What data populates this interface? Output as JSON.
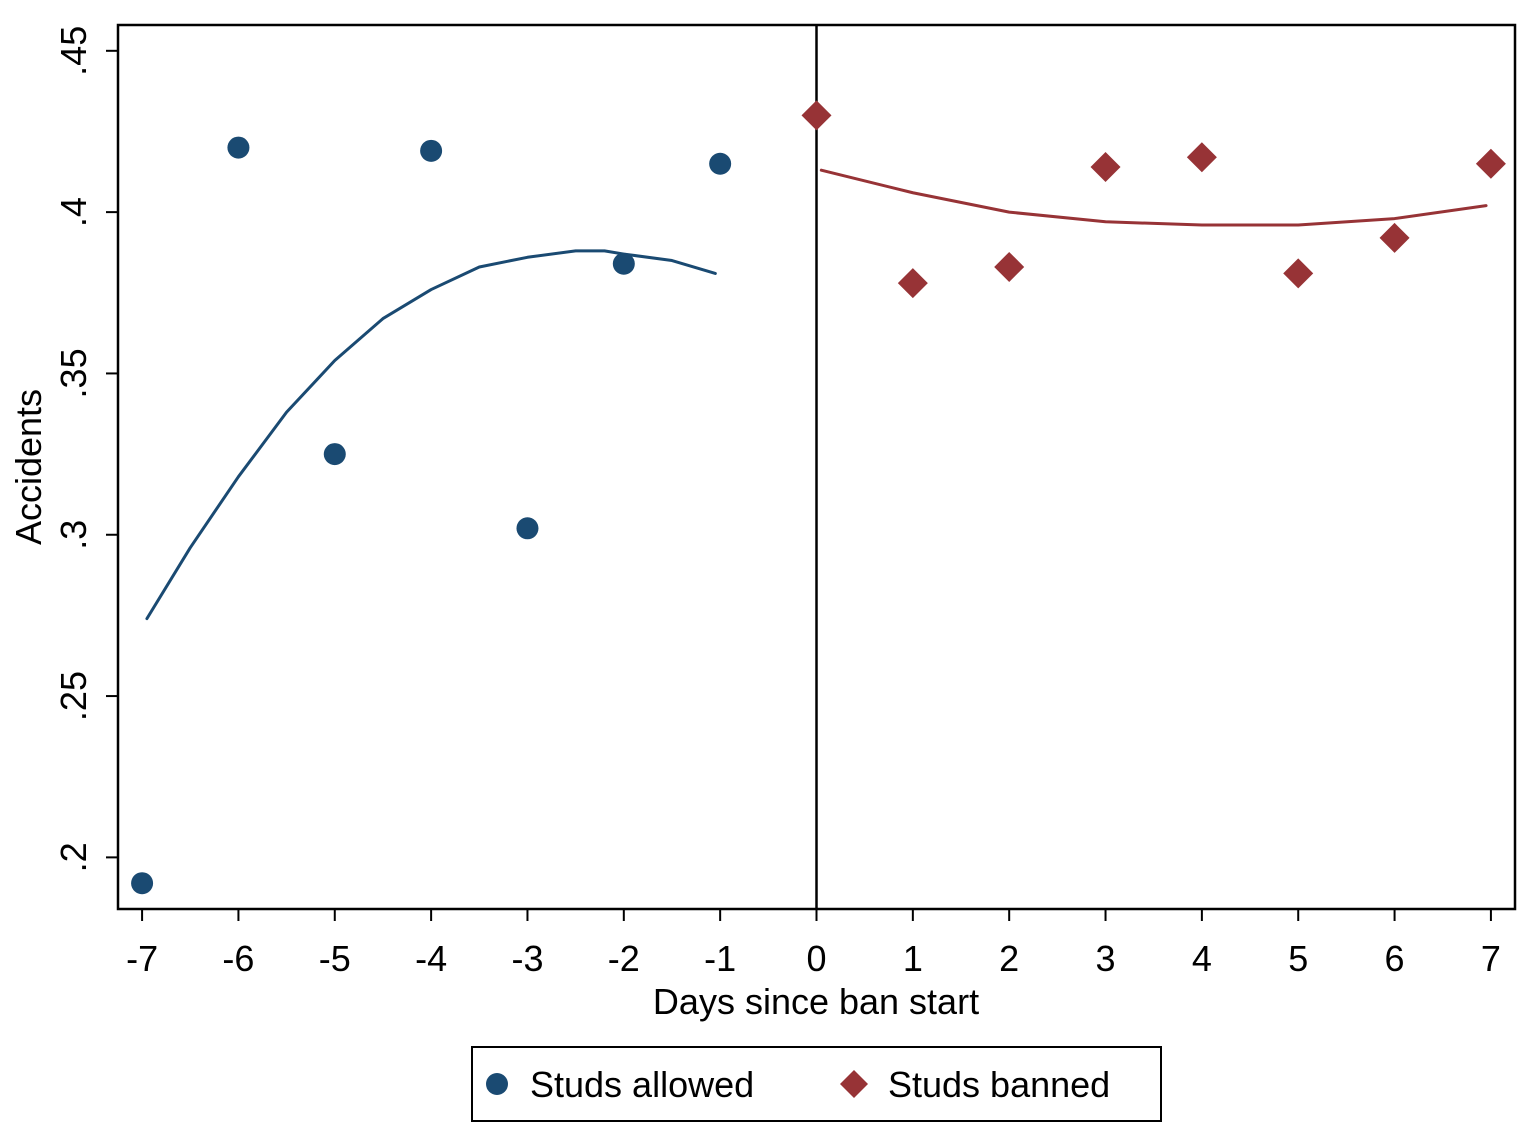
{
  "chart_data": {
    "type": "scatter",
    "xlabel": "Days since ban start",
    "ylabel": "Accidents",
    "xlim": [
      -7.25,
      7.25
    ],
    "ylim": [
      0.184,
      0.458
    ],
    "x_ticks": [
      -7,
      -6,
      -5,
      -4,
      -3,
      -2,
      -1,
      0,
      1,
      2,
      3,
      4,
      5,
      6,
      7
    ],
    "x_tick_labels": [
      "-7",
      "-6",
      "-5",
      "-4",
      "-3",
      "-2",
      "-1",
      "0",
      "1",
      "2",
      "3",
      "4",
      "5",
      "6",
      "7"
    ],
    "y_ticks": [
      0.2,
      0.25,
      0.3,
      0.35,
      0.4,
      0.45
    ],
    "y_tick_labels": [
      ".2",
      ".25",
      ".3",
      ".35",
      ".4",
      ".45"
    ],
    "vertical_line_x": 0,
    "grid": false,
    "legend_position": "bottom",
    "series": [
      {
        "name": "Studs allowed",
        "marker": "circle",
        "color": "#1a4a72",
        "x": [
          -7,
          -6,
          -5,
          -4,
          -3,
          -2,
          -1
        ],
        "y": [
          0.192,
          0.42,
          0.325,
          0.419,
          0.302,
          0.384,
          0.415
        ],
        "fit": {
          "type": "quadratic",
          "x": [
            -6.95,
            -6.5,
            -6.0,
            -5.5,
            -5.0,
            -4.5,
            -4.0,
            -3.5,
            -3.0,
            -2.5,
            -2.2,
            -2.0,
            -1.5,
            -1.05
          ],
          "y": [
            0.274,
            0.296,
            0.318,
            0.338,
            0.354,
            0.367,
            0.376,
            0.383,
            0.386,
            0.388,
            0.388,
            0.387,
            0.385,
            0.381
          ]
        }
      },
      {
        "name": "Studs banned",
        "marker": "diamond",
        "color": "#973336",
        "x": [
          0,
          1,
          2,
          3,
          4,
          5,
          6,
          7
        ],
        "y": [
          0.43,
          0.378,
          0.383,
          0.414,
          0.417,
          0.381,
          0.392,
          0.415
        ],
        "fit": {
          "type": "quadratic",
          "x": [
            0.05,
            1,
            2,
            3,
            4,
            4.35,
            5,
            6,
            6.95
          ],
          "y": [
            0.413,
            0.406,
            0.4,
            0.397,
            0.396,
            0.396,
            0.396,
            0.398,
            0.402
          ]
        }
      }
    ]
  }
}
